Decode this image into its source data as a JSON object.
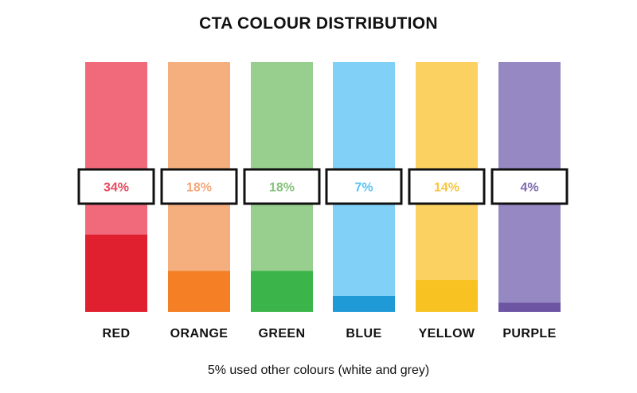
{
  "chart_data": {
    "type": "bar",
    "title": "CTA COLOUR DISTRIBUTION",
    "categories": [
      "RED",
      "ORANGE",
      "GREEN",
      "BLUE",
      "YELLOW",
      "PURPLE"
    ],
    "values": [
      34,
      18,
      18,
      7,
      14,
      4
    ],
    "value_labels": [
      "34%",
      "18%",
      "18%",
      "7%",
      "14%",
      "4%"
    ],
    "ylim": [
      0,
      110
    ],
    "colors": {
      "fill": [
        "#e0202f",
        "#f47f24",
        "#3bb44a",
        "#1f9ad6",
        "#f8c322",
        "#6d55a4"
      ],
      "track": [
        "#f06a7c",
        "#f5ae7e",
        "#98cf8f",
        "#80d0f7",
        "#fbd262",
        "#9588c3"
      ],
      "label": [
        "#e8495d",
        "#f5a87a",
        "#86c57c",
        "#5bc4f2",
        "#fac63f",
        "#7d6bb1"
      ]
    },
    "footnote": "5% used other colours (white and grey)"
  }
}
